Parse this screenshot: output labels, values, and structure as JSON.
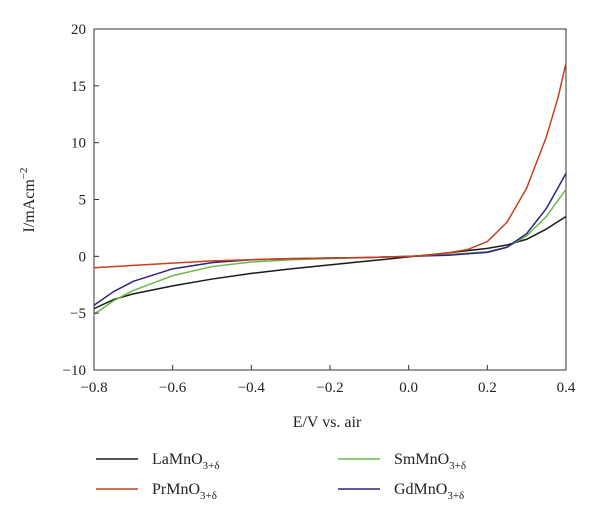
{
  "chart_data": {
    "type": "line",
    "title": "",
    "xlabel": "E/V vs. air",
    "ylabel": {
      "main": "I/mAcm",
      "sup": "−2"
    },
    "xlim": [
      -0.8,
      0.4
    ],
    "ylim": [
      -10,
      20
    ],
    "xticks": [
      -0.8,
      -0.6,
      -0.4,
      -0.2,
      0.0,
      0.2,
      0.4
    ],
    "xtick_labels": [
      "−0.8",
      "−0.6",
      "−0.4",
      "−0.2",
      "0.0",
      "0.2",
      "0.4"
    ],
    "yticks": [
      -10,
      -5,
      0,
      5,
      10,
      15,
      20
    ],
    "ytick_labels": [
      "−10",
      "−5",
      "0",
      "5",
      "10",
      "15",
      "20"
    ],
    "grid": false,
    "legend_position": "bottom",
    "series": [
      {
        "name": "LaMnO",
        "subscript": "3+δ",
        "color": "#1a1a1a",
        "x": [
          -0.8,
          -0.75,
          -0.7,
          -0.6,
          -0.5,
          -0.4,
          -0.3,
          -0.2,
          -0.1,
          0.0,
          0.1,
          0.2,
          0.25,
          0.3,
          0.35,
          0.4
        ],
        "y": [
          -4.6,
          -3.8,
          -3.3,
          -2.6,
          -2.0,
          -1.5,
          -1.1,
          -0.75,
          -0.4,
          -0.05,
          0.3,
          0.7,
          1.0,
          1.5,
          2.4,
          3.5
        ]
      },
      {
        "name": "PrMnO",
        "subscript": "3+δ",
        "color": "#c8401a",
        "x": [
          -0.8,
          -0.7,
          -0.6,
          -0.5,
          -0.4,
          -0.3,
          -0.2,
          -0.1,
          0.0,
          0.05,
          0.1,
          0.15,
          0.2,
          0.25,
          0.3,
          0.35,
          0.38,
          0.4
        ],
        "y": [
          -1.0,
          -0.8,
          -0.6,
          -0.4,
          -0.3,
          -0.2,
          -0.15,
          -0.1,
          0.0,
          0.1,
          0.3,
          0.6,
          1.3,
          3.0,
          6.0,
          10.5,
          14.0,
          17.0
        ]
      },
      {
        "name": "SmMnO",
        "subscript": "3+δ",
        "color": "#6ab84a",
        "x": [
          -0.8,
          -0.75,
          -0.7,
          -0.6,
          -0.5,
          -0.4,
          -0.3,
          -0.2,
          -0.1,
          0.0,
          0.1,
          0.2,
          0.25,
          0.3,
          0.35,
          0.4
        ],
        "y": [
          -5.1,
          -3.9,
          -3.0,
          -1.7,
          -0.9,
          -0.5,
          -0.3,
          -0.2,
          -0.1,
          0.0,
          0.15,
          0.4,
          0.8,
          1.8,
          3.5,
          5.9
        ]
      },
      {
        "name": "GdMnO",
        "subscript": "3+δ",
        "color": "#2a2580",
        "x": [
          -0.8,
          -0.75,
          -0.7,
          -0.6,
          -0.5,
          -0.4,
          -0.3,
          -0.2,
          -0.1,
          0.0,
          0.1,
          0.2,
          0.25,
          0.3,
          0.35,
          0.4
        ],
        "y": [
          -4.3,
          -3.1,
          -2.2,
          -1.1,
          -0.55,
          -0.3,
          -0.2,
          -0.15,
          -0.1,
          0.0,
          0.1,
          0.35,
          0.8,
          2.0,
          4.2,
          7.3
        ]
      }
    ]
  }
}
